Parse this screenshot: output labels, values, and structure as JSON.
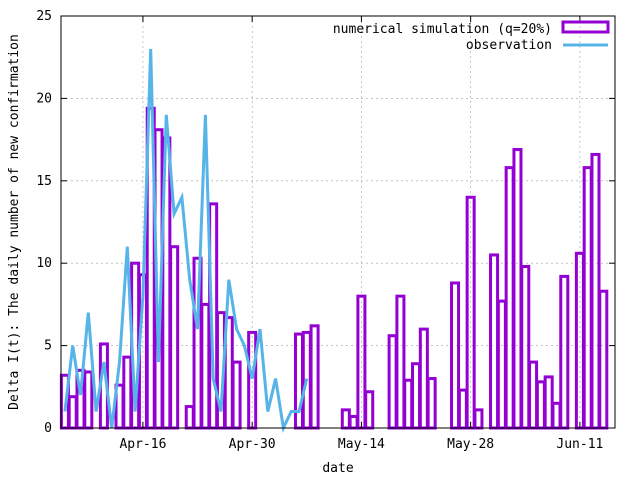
{
  "chart_data": {
    "type": "bar",
    "xlabel": "date",
    "ylabel": "Delta I(t): The daily number of new confirmation",
    "ylim": [
      0,
      25
    ],
    "xlim": [
      "2020-04-06",
      "2020-06-15"
    ],
    "y_ticks": [
      0,
      5,
      10,
      15,
      20,
      25
    ],
    "x_ticks": [
      "Apr-16",
      "Apr-30",
      "May-14",
      "May-28",
      "Jun-11"
    ],
    "x_tick_dates": [
      "2020-04-16",
      "2020-04-30",
      "2020-05-14",
      "2020-05-28",
      "2020-06-11"
    ],
    "grid": true,
    "legend_position": "top-right",
    "series": [
      {
        "name": "numerical simulation (q=20%)",
        "style": "boxes",
        "color": "#9400d3",
        "dates": [
          "2020-04-06",
          "2020-04-07",
          "2020-04-08",
          "2020-04-09",
          "2020-04-10",
          "2020-04-11",
          "2020-04-12",
          "2020-04-13",
          "2020-04-14",
          "2020-04-15",
          "2020-04-16",
          "2020-04-17",
          "2020-04-18",
          "2020-04-19",
          "2020-04-20",
          "2020-04-21",
          "2020-04-22",
          "2020-04-23",
          "2020-04-24",
          "2020-04-25",
          "2020-04-26",
          "2020-04-27",
          "2020-04-28",
          "2020-04-29",
          "2020-04-30",
          "2020-05-01",
          "2020-05-02",
          "2020-05-03",
          "2020-05-04",
          "2020-05-05",
          "2020-05-06",
          "2020-05-07",
          "2020-05-08",
          "2020-05-09",
          "2020-05-10",
          "2020-05-11",
          "2020-05-12",
          "2020-05-13",
          "2020-05-14",
          "2020-05-15",
          "2020-05-16",
          "2020-05-17",
          "2020-05-18",
          "2020-05-19",
          "2020-05-20",
          "2020-05-21",
          "2020-05-22",
          "2020-05-23",
          "2020-05-24",
          "2020-05-25",
          "2020-05-26",
          "2020-05-27",
          "2020-05-28",
          "2020-05-29",
          "2020-05-30",
          "2020-05-31",
          "2020-06-01",
          "2020-06-02",
          "2020-06-03",
          "2020-06-04",
          "2020-06-05",
          "2020-06-06",
          "2020-06-07",
          "2020-06-08",
          "2020-06-09",
          "2020-06-10",
          "2020-06-11",
          "2020-06-12",
          "2020-06-13",
          "2020-06-14",
          "2020-06-15"
        ],
        "values": [
          3.2,
          1.9,
          3.5,
          3.4,
          0.0,
          5.1,
          0.0,
          2.6,
          4.3,
          10.0,
          9.3,
          19.4,
          18.1,
          17.6,
          11.0,
          0.0,
          1.3,
          10.3,
          7.5,
          13.6,
          7.0,
          6.7,
          4.0,
          0.0,
          5.8,
          0.0,
          0.0,
          0.0,
          0.0,
          0.0,
          5.7,
          5.8,
          6.2,
          0.0,
          0.0,
          0.0,
          1.1,
          0.7,
          8.0,
          2.2,
          0.0,
          0.0,
          5.6,
          8.0,
          2.9,
          3.9,
          6.0,
          3.0,
          0.0,
          0.0,
          8.8,
          2.3,
          14.0,
          1.1,
          0.0,
          10.5,
          7.7,
          15.8,
          16.9,
          9.8,
          4.0,
          2.8,
          3.1,
          1.5,
          9.2,
          0.0,
          10.6,
          15.8,
          16.6,
          8.3,
          0.0
        ]
      },
      {
        "name": "observation",
        "style": "line",
        "color": "#56b4e9",
        "dates": [
          "2020-04-06",
          "2020-04-07",
          "2020-04-08",
          "2020-04-09",
          "2020-04-10",
          "2020-04-11",
          "2020-04-12",
          "2020-04-13",
          "2020-04-14",
          "2020-04-15",
          "2020-04-16",
          "2020-04-17",
          "2020-04-18",
          "2020-04-19",
          "2020-04-20",
          "2020-04-21",
          "2020-04-22",
          "2020-04-23",
          "2020-04-24",
          "2020-04-25",
          "2020-04-26",
          "2020-04-27",
          "2020-04-28",
          "2020-04-29",
          "2020-04-30",
          "2020-05-01",
          "2020-05-02",
          "2020-05-03",
          "2020-05-04",
          "2020-05-05",
          "2020-05-06",
          "2020-05-07",
          "2020-05-08"
        ],
        "values": [
          1,
          5,
          2,
          7,
          1,
          4,
          0,
          4,
          11,
          1,
          8,
          23,
          4,
          19,
          13,
          14,
          9,
          6,
          19,
          3,
          1,
          9,
          6,
          5,
          3,
          6,
          1,
          3,
          0,
          1,
          1,
          3,
          null
        ]
      }
    ]
  }
}
